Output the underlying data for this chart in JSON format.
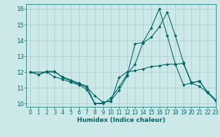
{
  "title": "",
  "xlabel": "Humidex (Indice chaleur)",
  "ylabel": "",
  "background_color": "#cce8e8",
  "grid_color": "#aacccc",
  "line_color": "#006666",
  "xlim": [
    -0.5,
    23
  ],
  "ylim": [
    9.8,
    16.3
  ],
  "yticks": [
    10,
    11,
    12,
    13,
    14,
    15,
    16
  ],
  "xticks": [
    0,
    1,
    2,
    3,
    4,
    5,
    6,
    7,
    8,
    9,
    10,
    11,
    12,
    13,
    14,
    15,
    16,
    17,
    18,
    19,
    20,
    21,
    22,
    23
  ],
  "lines": [
    {
      "x": [
        0,
        1,
        2,
        3,
        4,
        5,
        6,
        7,
        8,
        9,
        10,
        11,
        12,
        13,
        14,
        15,
        16,
        17,
        18,
        19,
        20,
        21,
        22,
        23
      ],
      "y": [
        12.0,
        11.85,
        12.0,
        12.0,
        11.7,
        11.5,
        11.3,
        11.1,
        10.0,
        10.05,
        10.2,
        10.85,
        11.75,
        13.8,
        13.85,
        14.2,
        14.85,
        15.8,
        14.3,
        12.6,
        11.35,
        11.4,
        10.75,
        10.25
      ]
    },
    {
      "x": [
        0,
        1,
        2,
        3,
        4,
        5,
        6,
        7,
        8,
        9,
        10,
        11,
        12,
        13,
        14,
        15,
        16,
        17,
        18,
        19,
        20,
        21,
        22,
        23
      ],
      "y": [
        12.0,
        11.85,
        12.05,
        12.05,
        11.65,
        11.45,
        11.25,
        11.05,
        10.5,
        10.1,
        10.15,
        11.65,
        12.0,
        12.1,
        12.2,
        12.35,
        12.4,
        12.5,
        12.5,
        12.55,
        11.3,
        11.45,
        10.7,
        10.2
      ]
    },
    {
      "x": [
        0,
        2,
        3,
        4,
        5,
        6,
        7,
        8,
        9,
        10,
        11,
        12,
        13,
        14,
        15,
        16,
        17,
        18,
        19,
        20,
        21,
        22,
        23
      ],
      "y": [
        12.0,
        12.0,
        11.7,
        11.55,
        11.35,
        11.2,
        10.9,
        10.0,
        10.0,
        10.35,
        11.05,
        11.85,
        12.5,
        13.9,
        14.8,
        16.0,
        14.3,
        12.5,
        11.2,
        11.3,
        11.1,
        10.7,
        10.2
      ]
    }
  ],
  "tick_fontsize": 5.5,
  "xlabel_fontsize": 6.5,
  "marker_size": 2.0,
  "linewidth": 0.8
}
